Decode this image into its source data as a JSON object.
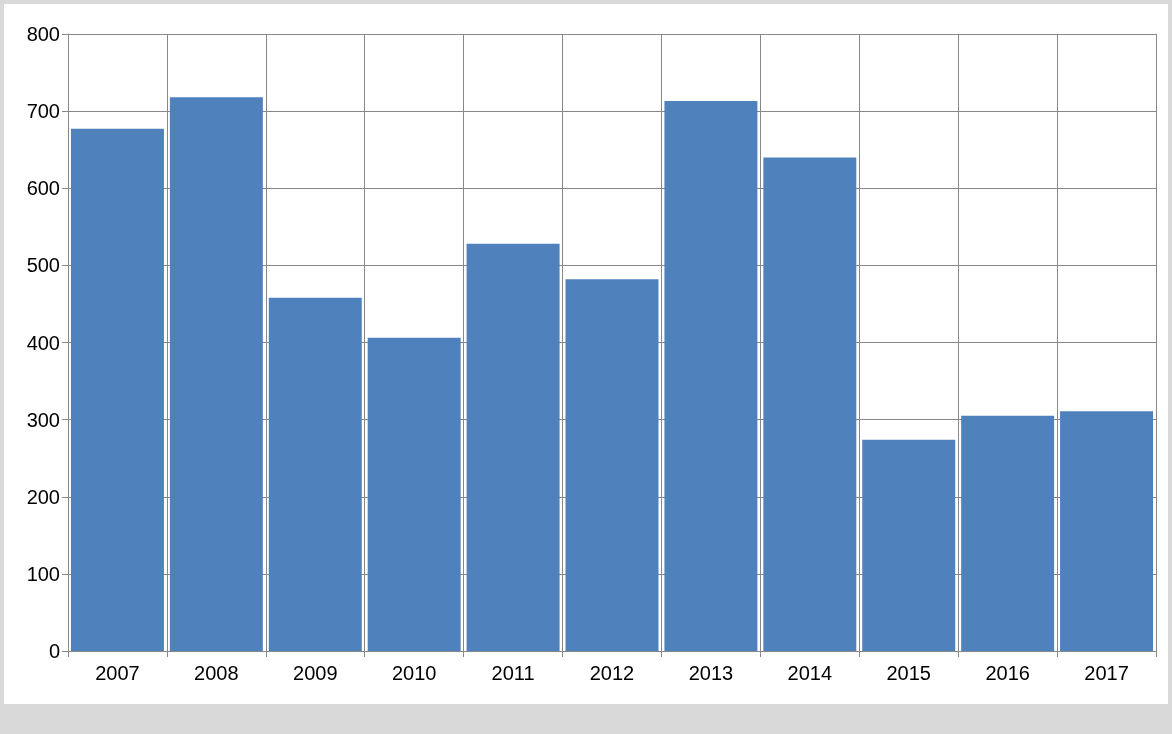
{
  "chart_data": {
    "type": "bar",
    "categories": [
      "2007",
      "2008",
      "2009",
      "2010",
      "2011",
      "2012",
      "2013",
      "2014",
      "2015",
      "2016",
      "2017"
    ],
    "values": [
      677,
      718,
      458,
      406,
      528,
      482,
      713,
      640,
      274,
      305,
      311
    ],
    "color": "#4f81bd",
    "ylim": [
      0,
      800
    ],
    "yticks": [
      0,
      100,
      200,
      300,
      400,
      500,
      600,
      700,
      800
    ],
    "grid": true
  }
}
